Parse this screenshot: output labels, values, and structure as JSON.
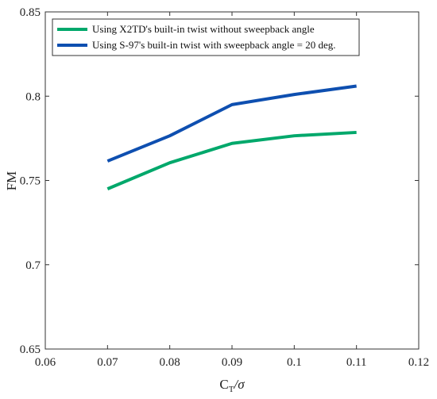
{
  "chart_data": {
    "type": "line",
    "xlabel": "C_T/σ",
    "xlabel_main": "C",
    "xlabel_sub": "T",
    "xlabel_tail": "/σ",
    "ylabel": "FM",
    "xlim": [
      0.06,
      0.12
    ],
    "ylim": [
      0.65,
      0.85
    ],
    "xticks": [
      0.06,
      0.07,
      0.08,
      0.09,
      0.1,
      0.11,
      0.12
    ],
    "xtick_labels": [
      "0.06",
      "0.07",
      "0.08",
      "0.09",
      "0.1",
      "0.11",
      "0.12"
    ],
    "yticks": [
      0.65,
      0.7,
      0.75,
      0.8,
      0.85
    ],
    "ytick_labels": [
      "0.65",
      "0.7",
      "0.75",
      "0.8",
      "0.85"
    ],
    "grid": false,
    "legend_position": "top-left",
    "x": [
      0.07,
      0.08,
      0.09,
      0.1,
      0.11
    ],
    "series": [
      {
        "name": "Using X2TD's built-in twist without sweepback angle",
        "color": "#00a86b",
        "values": [
          0.745,
          0.7605,
          0.772,
          0.7765,
          0.7785
        ]
      },
      {
        "name": "Using S-97's built-in twist with sweepback angle = 20 deg.",
        "color": "#0e4fb0",
        "values": [
          0.7615,
          0.7765,
          0.795,
          0.801,
          0.806
        ]
      }
    ]
  }
}
